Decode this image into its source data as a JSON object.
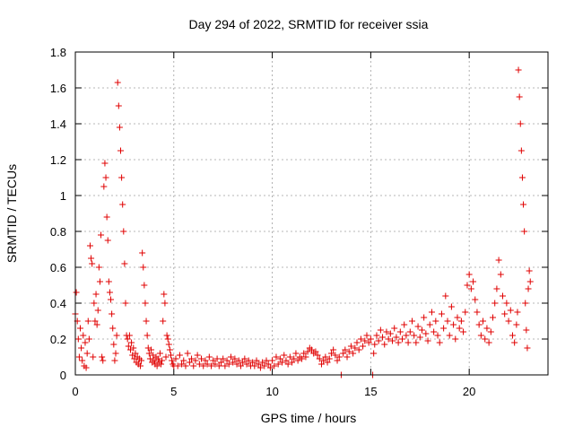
{
  "chart_data": {
    "type": "scatter",
    "title": "Day 294 of 2022, SRMTID for receiver ssia",
    "xlabel": "GPS time / hours",
    "ylabel": "SRMTID / TECUs",
    "xlim": [
      0,
      24
    ],
    "ylim": [
      0,
      1.8
    ],
    "xticks": [
      0,
      5,
      10,
      15,
      20
    ],
    "xtick_labels": [
      "0",
      "5",
      "10",
      "15",
      "20"
    ],
    "yticks": [
      0,
      0.2,
      0.4,
      0.6,
      0.8,
      1.0,
      1.2,
      1.4,
      1.6,
      1.8
    ],
    "ytick_labels": [
      "0",
      "0.2",
      "0.4",
      "0.6",
      "0.8",
      "1",
      "1.2",
      "1.4",
      "1.6",
      "1.8"
    ],
    "grid": true,
    "marker": "+",
    "marker_color": "#e00000",
    "series": [
      {
        "name": "SRMTID",
        "points": [
          [
            0.0,
            0.34
          ],
          [
            0.05,
            0.46
          ],
          [
            0.1,
            0.3
          ],
          [
            0.15,
            0.2
          ],
          [
            0.2,
            0.1
          ],
          [
            0.25,
            0.26
          ],
          [
            0.3,
            0.15
          ],
          [
            0.35,
            0.08
          ],
          [
            0.4,
            0.22
          ],
          [
            0.45,
            0.05
          ],
          [
            0.5,
            0.18
          ],
          [
            0.55,
            0.04
          ],
          [
            0.6,
            0.12
          ],
          [
            0.65,
            0.3
          ],
          [
            0.7,
            0.2
          ],
          [
            0.75,
            0.72
          ],
          [
            0.8,
            0.65
          ],
          [
            0.85,
            0.62
          ],
          [
            0.9,
            0.1
          ],
          [
            0.95,
            0.4
          ],
          [
            1.0,
            0.3
          ],
          [
            1.05,
            0.45
          ],
          [
            1.1,
            0.28
          ],
          [
            1.15,
            0.36
          ],
          [
            1.2,
            0.6
          ],
          [
            1.25,
            0.52
          ],
          [
            1.3,
            0.78
          ],
          [
            1.35,
            0.1
          ],
          [
            1.4,
            0.08
          ],
          [
            1.45,
            1.05
          ],
          [
            1.5,
            1.18
          ],
          [
            1.55,
            1.1
          ],
          [
            1.6,
            0.88
          ],
          [
            1.65,
            0.75
          ],
          [
            1.7,
            0.52
          ],
          [
            1.75,
            0.46
          ],
          [
            1.8,
            0.42
          ],
          [
            1.85,
            0.34
          ],
          [
            1.9,
            0.26
          ],
          [
            1.95,
            0.17
          ],
          [
            2.0,
            0.08
          ],
          [
            2.05,
            0.12
          ],
          [
            2.1,
            0.22
          ],
          [
            2.15,
            1.63
          ],
          [
            2.2,
            1.5
          ],
          [
            2.25,
            1.38
          ],
          [
            2.3,
            1.25
          ],
          [
            2.35,
            1.1
          ],
          [
            2.4,
            0.95
          ],
          [
            2.45,
            0.8
          ],
          [
            2.5,
            0.62
          ],
          [
            2.55,
            0.4
          ],
          [
            2.6,
            0.22
          ],
          [
            2.65,
            0.2
          ],
          [
            2.7,
            0.16
          ],
          [
            2.75,
            0.22
          ],
          [
            2.8,
            0.14
          ],
          [
            2.85,
            0.18
          ],
          [
            2.9,
            0.11
          ],
          [
            2.95,
            0.15
          ],
          [
            3.0,
            0.09
          ],
          [
            3.05,
            0.12
          ],
          [
            3.1,
            0.07
          ],
          [
            3.15,
            0.1
          ],
          [
            3.2,
            0.06
          ],
          [
            3.25,
            0.09
          ],
          [
            3.3,
            0.05
          ],
          [
            3.35,
            0.08
          ],
          [
            3.4,
            0.68
          ],
          [
            3.45,
            0.6
          ],
          [
            3.5,
            0.5
          ],
          [
            3.55,
            0.4
          ],
          [
            3.6,
            0.3
          ],
          [
            3.65,
            0.22
          ],
          [
            3.7,
            0.15
          ],
          [
            3.75,
            0.12
          ],
          [
            3.8,
            0.09
          ],
          [
            3.85,
            0.14
          ],
          [
            3.9,
            0.07
          ],
          [
            3.95,
            0.11
          ],
          [
            4.0,
            0.08
          ],
          [
            4.05,
            0.06
          ],
          [
            4.1,
            0.1
          ],
          [
            4.15,
            0.05
          ],
          [
            4.2,
            0.09
          ],
          [
            4.25,
            0.07
          ],
          [
            4.3,
            0.12
          ],
          [
            4.35,
            0.06
          ],
          [
            4.4,
            0.08
          ],
          [
            4.45,
            0.3
          ],
          [
            4.5,
            0.45
          ],
          [
            4.55,
            0.4
          ],
          [
            4.6,
            0.1
          ],
          [
            4.65,
            0.22
          ],
          [
            4.7,
            0.2
          ],
          [
            4.75,
            0.17
          ],
          [
            4.8,
            0.14
          ],
          [
            4.85,
            0.11
          ],
          [
            4.9,
            0.08
          ],
          [
            4.95,
            0.06
          ],
          [
            5.0,
            0.05
          ],
          [
            5.1,
            0.09
          ],
          [
            5.2,
            0.05
          ],
          [
            5.3,
            0.11
          ],
          [
            5.4,
            0.06
          ],
          [
            5.5,
            0.08
          ],
          [
            5.6,
            0.05
          ],
          [
            5.7,
            0.12
          ],
          [
            5.8,
            0.07
          ],
          [
            5.9,
            0.09
          ],
          [
            6.0,
            0.05
          ],
          [
            6.1,
            0.08
          ],
          [
            6.2,
            0.11
          ],
          [
            6.3,
            0.06
          ],
          [
            6.4,
            0.09
          ],
          [
            6.5,
            0.05
          ],
          [
            6.6,
            0.08
          ],
          [
            6.7,
            0.06
          ],
          [
            6.8,
            0.1
          ],
          [
            6.9,
            0.05
          ],
          [
            7.0,
            0.08
          ],
          [
            7.1,
            0.06
          ],
          [
            7.2,
            0.09
          ],
          [
            7.3,
            0.05
          ],
          [
            7.4,
            0.07
          ],
          [
            7.5,
            0.09
          ],
          [
            7.6,
            0.05
          ],
          [
            7.7,
            0.08
          ],
          [
            7.8,
            0.06
          ],
          [
            7.9,
            0.1
          ],
          [
            8.0,
            0.07
          ],
          [
            8.1,
            0.09
          ],
          [
            8.2,
            0.06
          ],
          [
            8.3,
            0.08
          ],
          [
            8.4,
            0.05
          ],
          [
            8.5,
            0.07
          ],
          [
            8.6,
            0.09
          ],
          [
            8.7,
            0.06
          ],
          [
            8.8,
            0.08
          ],
          [
            8.9,
            0.05
          ],
          [
            9.0,
            0.07
          ],
          [
            9.1,
            0.05
          ],
          [
            9.2,
            0.08
          ],
          [
            9.3,
            0.06
          ],
          [
            9.4,
            0.04
          ],
          [
            9.5,
            0.07
          ],
          [
            9.6,
            0.05
          ],
          [
            9.7,
            0.08
          ],
          [
            9.8,
            0.06
          ],
          [
            9.9,
            0.04
          ],
          [
            10.0,
            0.08
          ],
          [
            10.1,
            0.05
          ],
          [
            10.2,
            0.1
          ],
          [
            10.3,
            0.06
          ],
          [
            10.4,
            0.09
          ],
          [
            10.5,
            0.07
          ],
          [
            10.6,
            0.11
          ],
          [
            10.7,
            0.08
          ],
          [
            10.8,
            0.06
          ],
          [
            10.9,
            0.1
          ],
          [
            11.0,
            0.07
          ],
          [
            11.1,
            0.09
          ],
          [
            11.2,
            0.12
          ],
          [
            11.3,
            0.08
          ],
          [
            11.4,
            0.1
          ],
          [
            11.5,
            0.09
          ],
          [
            11.6,
            0.12
          ],
          [
            11.7,
            0.1
          ],
          [
            11.8,
            0.13
          ],
          [
            11.9,
            0.15
          ],
          [
            12.0,
            0.14
          ],
          [
            12.1,
            0.12
          ],
          [
            12.2,
            0.13
          ],
          [
            12.3,
            0.11
          ],
          [
            12.4,
            0.09
          ],
          [
            12.5,
            0.06
          ],
          [
            12.6,
            0.08
          ],
          [
            12.7,
            0.1
          ],
          [
            12.8,
            0.07
          ],
          [
            12.9,
            0.09
          ],
          [
            13.0,
            0.12
          ],
          [
            13.1,
            0.14
          ],
          [
            13.2,
            0.11
          ],
          [
            13.3,
            0.08
          ],
          [
            13.4,
            0.1
          ],
          [
            13.5,
            0.0
          ],
          [
            13.6,
            0.12
          ],
          [
            13.7,
            0.14
          ],
          [
            13.8,
            0.1
          ],
          [
            13.9,
            0.13
          ],
          [
            14.0,
            0.16
          ],
          [
            14.1,
            0.12
          ],
          [
            14.2,
            0.15
          ],
          [
            14.3,
            0.18
          ],
          [
            14.4,
            0.14
          ],
          [
            14.5,
            0.2
          ],
          [
            14.6,
            0.16
          ],
          [
            14.7,
            0.19
          ],
          [
            14.8,
            0.22
          ],
          [
            14.9,
            0.18
          ],
          [
            15.0,
            0.2
          ],
          [
            15.1,
            0.0
          ],
          [
            15.15,
            0.12
          ],
          [
            15.2,
            0.17
          ],
          [
            15.3,
            0.22
          ],
          [
            15.4,
            0.19
          ],
          [
            15.5,
            0.25
          ],
          [
            15.6,
            0.21
          ],
          [
            15.7,
            0.17
          ],
          [
            15.8,
            0.24
          ],
          [
            15.9,
            0.2
          ],
          [
            16.0,
            0.23
          ],
          [
            16.1,
            0.19
          ],
          [
            16.2,
            0.26
          ],
          [
            16.3,
            0.21
          ],
          [
            16.4,
            0.18
          ],
          [
            16.5,
            0.24
          ],
          [
            16.6,
            0.2
          ],
          [
            16.7,
            0.28
          ],
          [
            16.8,
            0.22
          ],
          [
            16.9,
            0.18
          ],
          [
            17.0,
            0.24
          ],
          [
            17.1,
            0.3
          ],
          [
            17.2,
            0.22
          ],
          [
            17.3,
            0.18
          ],
          [
            17.4,
            0.27
          ],
          [
            17.5,
            0.21
          ],
          [
            17.6,
            0.25
          ],
          [
            17.7,
            0.32
          ],
          [
            17.8,
            0.23
          ],
          [
            17.9,
            0.19
          ],
          [
            18.0,
            0.28
          ],
          [
            18.1,
            0.35
          ],
          [
            18.2,
            0.24
          ],
          [
            18.3,
            0.3
          ],
          [
            18.4,
            0.22
          ],
          [
            18.5,
            0.18
          ],
          [
            18.6,
            0.34
          ],
          [
            18.7,
            0.26
          ],
          [
            18.8,
            0.44
          ],
          [
            18.9,
            0.3
          ],
          [
            19.0,
            0.22
          ],
          [
            19.1,
            0.38
          ],
          [
            19.2,
            0.28
          ],
          [
            19.3,
            0.2
          ],
          [
            19.4,
            0.32
          ],
          [
            19.5,
            0.26
          ],
          [
            19.6,
            0.3
          ],
          [
            19.7,
            0.24
          ],
          [
            19.8,
            0.35
          ],
          [
            19.9,
            0.5
          ],
          [
            20.0,
            0.56
          ],
          [
            20.1,
            0.48
          ],
          [
            20.2,
            0.52
          ],
          [
            20.3,
            0.42
          ],
          [
            20.4,
            0.35
          ],
          [
            20.5,
            0.28
          ],
          [
            20.6,
            0.22
          ],
          [
            20.7,
            0.3
          ],
          [
            20.8,
            0.2
          ],
          [
            20.9,
            0.26
          ],
          [
            21.0,
            0.18
          ],
          [
            21.1,
            0.24
          ],
          [
            21.2,
            0.32
          ],
          [
            21.3,
            0.4
          ],
          [
            21.4,
            0.48
          ],
          [
            21.5,
            0.64
          ],
          [
            21.6,
            0.56
          ],
          [
            21.7,
            0.44
          ],
          [
            21.8,
            0.34
          ],
          [
            21.9,
            0.4
          ],
          [
            22.0,
            0.3
          ],
          [
            22.1,
            0.36
          ],
          [
            22.2,
            0.22
          ],
          [
            22.3,
            0.18
          ],
          [
            22.4,
            0.28
          ],
          [
            22.45,
            0.35
          ],
          [
            22.5,
            1.7
          ],
          [
            22.55,
            1.55
          ],
          [
            22.6,
            1.4
          ],
          [
            22.65,
            1.25
          ],
          [
            22.7,
            1.1
          ],
          [
            22.75,
            0.95
          ],
          [
            22.8,
            0.8
          ],
          [
            22.85,
            0.4
          ],
          [
            22.9,
            0.25
          ],
          [
            22.95,
            0.15
          ],
          [
            23.0,
            0.48
          ],
          [
            23.05,
            0.58
          ],
          [
            23.1,
            0.52
          ]
        ]
      }
    ]
  }
}
